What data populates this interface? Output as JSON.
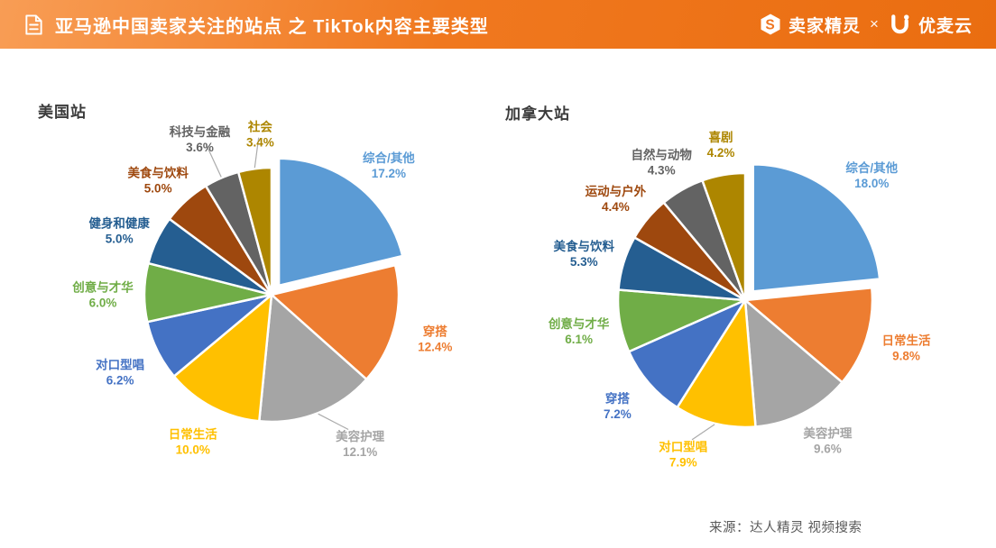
{
  "header": {
    "title": "亚马逊中国卖家关注的站点 之 TikTok内容主要类型",
    "brand_left": "卖家精灵",
    "brand_sep": "×",
    "brand_right": "优麦云",
    "accent_color": "#F0781F"
  },
  "source": "来源：达人精灵 视频搜索",
  "chart_data": [
    {
      "type": "pie",
      "title": "美国站",
      "labels_position": "outside",
      "label_content": "category + percent (1 decimal), text colored like slice",
      "start_angle": "12 o'clock",
      "direction": "clockwise",
      "explode_first_slice": true,
      "slices": [
        {
          "label": "综合/其他",
          "value": 17.2,
          "color": "#5B9BD5",
          "exploded": true
        },
        {
          "label": "穿搭",
          "value": 12.4,
          "color": "#ED7D31"
        },
        {
          "label": "美容护理",
          "value": 12.1,
          "color": "#A5A5A5",
          "leader": true
        },
        {
          "label": "日常生活",
          "value": 10.0,
          "color": "#FFC000"
        },
        {
          "label": "对口型唱",
          "value": 6.2,
          "color": "#4472C4"
        },
        {
          "label": "创意与才华",
          "value": 6.0,
          "color": "#70AD47"
        },
        {
          "label": "健身和健康",
          "value": 5.0,
          "color": "#255E91"
        },
        {
          "label": "美食与饮料",
          "value": 5.0,
          "color": "#9E480E"
        },
        {
          "label": "科技与金融",
          "value": 3.6,
          "color": "#636363",
          "leader": true
        },
        {
          "label": "社会",
          "value": 3.4,
          "color": "#AD8600",
          "leader": true
        }
      ]
    },
    {
      "type": "pie",
      "title": "加拿大站",
      "labels_position": "outside",
      "label_content": "category + percent (1 decimal), text colored like slice",
      "start_angle": "12 o'clock",
      "direction": "clockwise",
      "explode_first_slice": true,
      "slices": [
        {
          "label": "综合/其他",
          "value": 18.0,
          "color": "#5B9BD5",
          "exploded": true
        },
        {
          "label": "日常生活",
          "value": 9.8,
          "color": "#ED7D31"
        },
        {
          "label": "美容护理",
          "value": 9.6,
          "color": "#A5A5A5"
        },
        {
          "label": "对口型唱",
          "value": 7.9,
          "color": "#FFC000",
          "leader": true
        },
        {
          "label": "穿搭",
          "value": 7.2,
          "color": "#4472C4"
        },
        {
          "label": "创意与才华",
          "value": 6.1,
          "color": "#70AD47"
        },
        {
          "label": "美食与饮料",
          "value": 5.3,
          "color": "#255E91"
        },
        {
          "label": "运动与户外",
          "value": 4.4,
          "color": "#9E480E"
        },
        {
          "label": "自然与动物",
          "value": 4.3,
          "color": "#636363"
        },
        {
          "label": "喜剧",
          "value": 4.2,
          "color": "#AD8600"
        }
      ]
    }
  ]
}
